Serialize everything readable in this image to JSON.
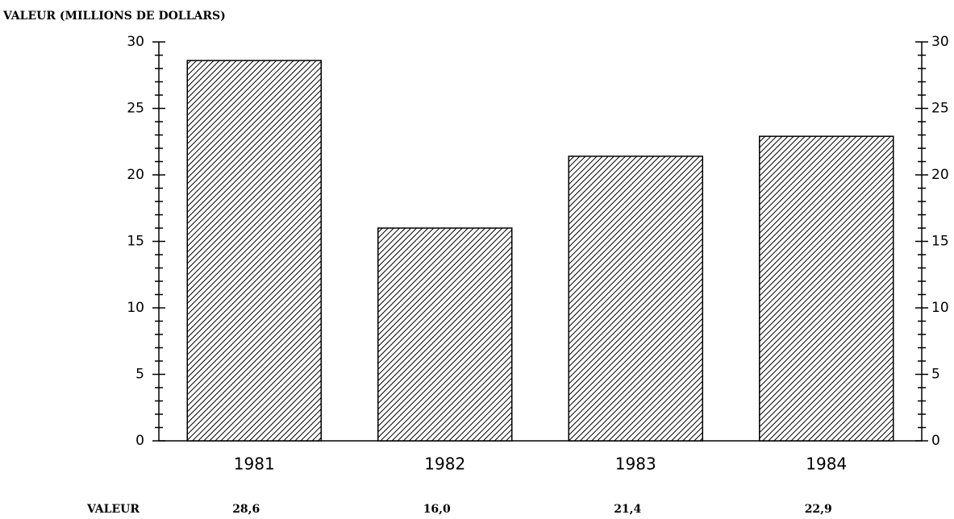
{
  "chart_data": {
    "type": "bar",
    "y_axis_label": "VALEUR (MILLIONS DE DOLLARS)",
    "categories": [
      "1981",
      "1982",
      "1983",
      "1984"
    ],
    "values": [
      28.6,
      16.0,
      21.4,
      22.9
    ],
    "value_labels": [
      "28,6",
      "16,0",
      "21,4",
      "22,9"
    ],
    "value_row_label": "VALEUR",
    "color": "#000000",
    "ylim": [
      0,
      30
    ],
    "yticks": [
      0,
      5,
      10,
      15,
      20,
      25,
      30
    ],
    "y2lim": [
      0,
      30
    ],
    "y2ticks": [
      0,
      5,
      10,
      15,
      20,
      25,
      30
    ]
  }
}
